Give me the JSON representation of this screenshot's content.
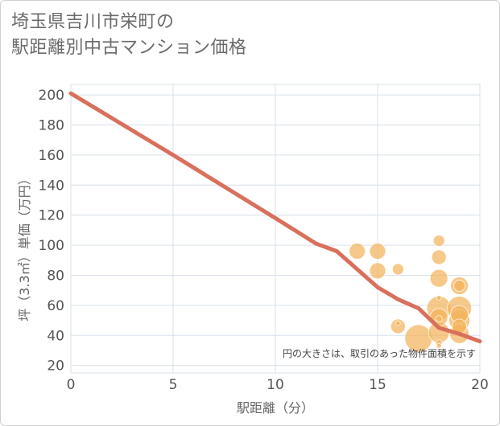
{
  "header": {
    "title_line1": "埼玉県吉川市栄町の",
    "title_line2": "駅距離別中古マンション価格"
  },
  "colors": {
    "line": "#d9705c",
    "bubble": "#f2b35c",
    "grid": "#d7e0ea"
  },
  "chart_data": {
    "type": "scatter",
    "xlabel": "駅距離（分）",
    "ylabel": "坪（3.3㎡）単価（万円）",
    "xlim": [
      0,
      20
    ],
    "ylim": [
      15,
      207
    ],
    "xticks": [
      0,
      5,
      10,
      15,
      20
    ],
    "yticks": [
      20,
      40,
      60,
      80,
      100,
      120,
      140,
      160,
      180,
      200
    ],
    "grid": true,
    "annotation": "円の大きさは、取引のあった物件面積を示す",
    "series": [
      {
        "name": "trend",
        "kind": "line",
        "x": [
          0,
          5,
          10,
          12,
          13,
          15,
          16,
          17,
          18,
          19,
          20
        ],
        "y": [
          201,
          160,
          118,
          101,
          96,
          72,
          64,
          58,
          45,
          41,
          36
        ]
      },
      {
        "name": "transactions",
        "kind": "bubble",
        "points": [
          {
            "x": 14,
            "y": 96,
            "size": 10
          },
          {
            "x": 15,
            "y": 96,
            "size": 10
          },
          {
            "x": 15,
            "y": 83,
            "size": 10
          },
          {
            "x": 16,
            "y": 84,
            "size": 7
          },
          {
            "x": 16,
            "y": 46,
            "size": 9
          },
          {
            "x": 16,
            "y": 48,
            "size": 3
          },
          {
            "x": 17,
            "y": 38,
            "size": 17
          },
          {
            "x": 18,
            "y": 103,
            "size": 7
          },
          {
            "x": 18,
            "y": 92,
            "size": 9
          },
          {
            "x": 18,
            "y": 78,
            "size": 11
          },
          {
            "x": 18,
            "y": 65,
            "size": 3
          },
          {
            "x": 18,
            "y": 58,
            "size": 15
          },
          {
            "x": 18,
            "y": 52,
            "size": 11
          },
          {
            "x": 18,
            "y": 51,
            "size": 4
          },
          {
            "x": 18,
            "y": 42,
            "size": 13
          },
          {
            "x": 18,
            "y": 35,
            "size": 4
          },
          {
            "x": 18,
            "y": 33,
            "size": 3
          },
          {
            "x": 19,
            "y": 73,
            "size": 11
          },
          {
            "x": 19,
            "y": 73,
            "size": 7
          },
          {
            "x": 19,
            "y": 58,
            "size": 15
          },
          {
            "x": 19,
            "y": 54,
            "size": 11
          },
          {
            "x": 19,
            "y": 50,
            "size": 13
          },
          {
            "x": 19,
            "y": 46,
            "size": 9
          },
          {
            "x": 19,
            "y": 41,
            "size": 12
          }
        ]
      }
    ]
  }
}
